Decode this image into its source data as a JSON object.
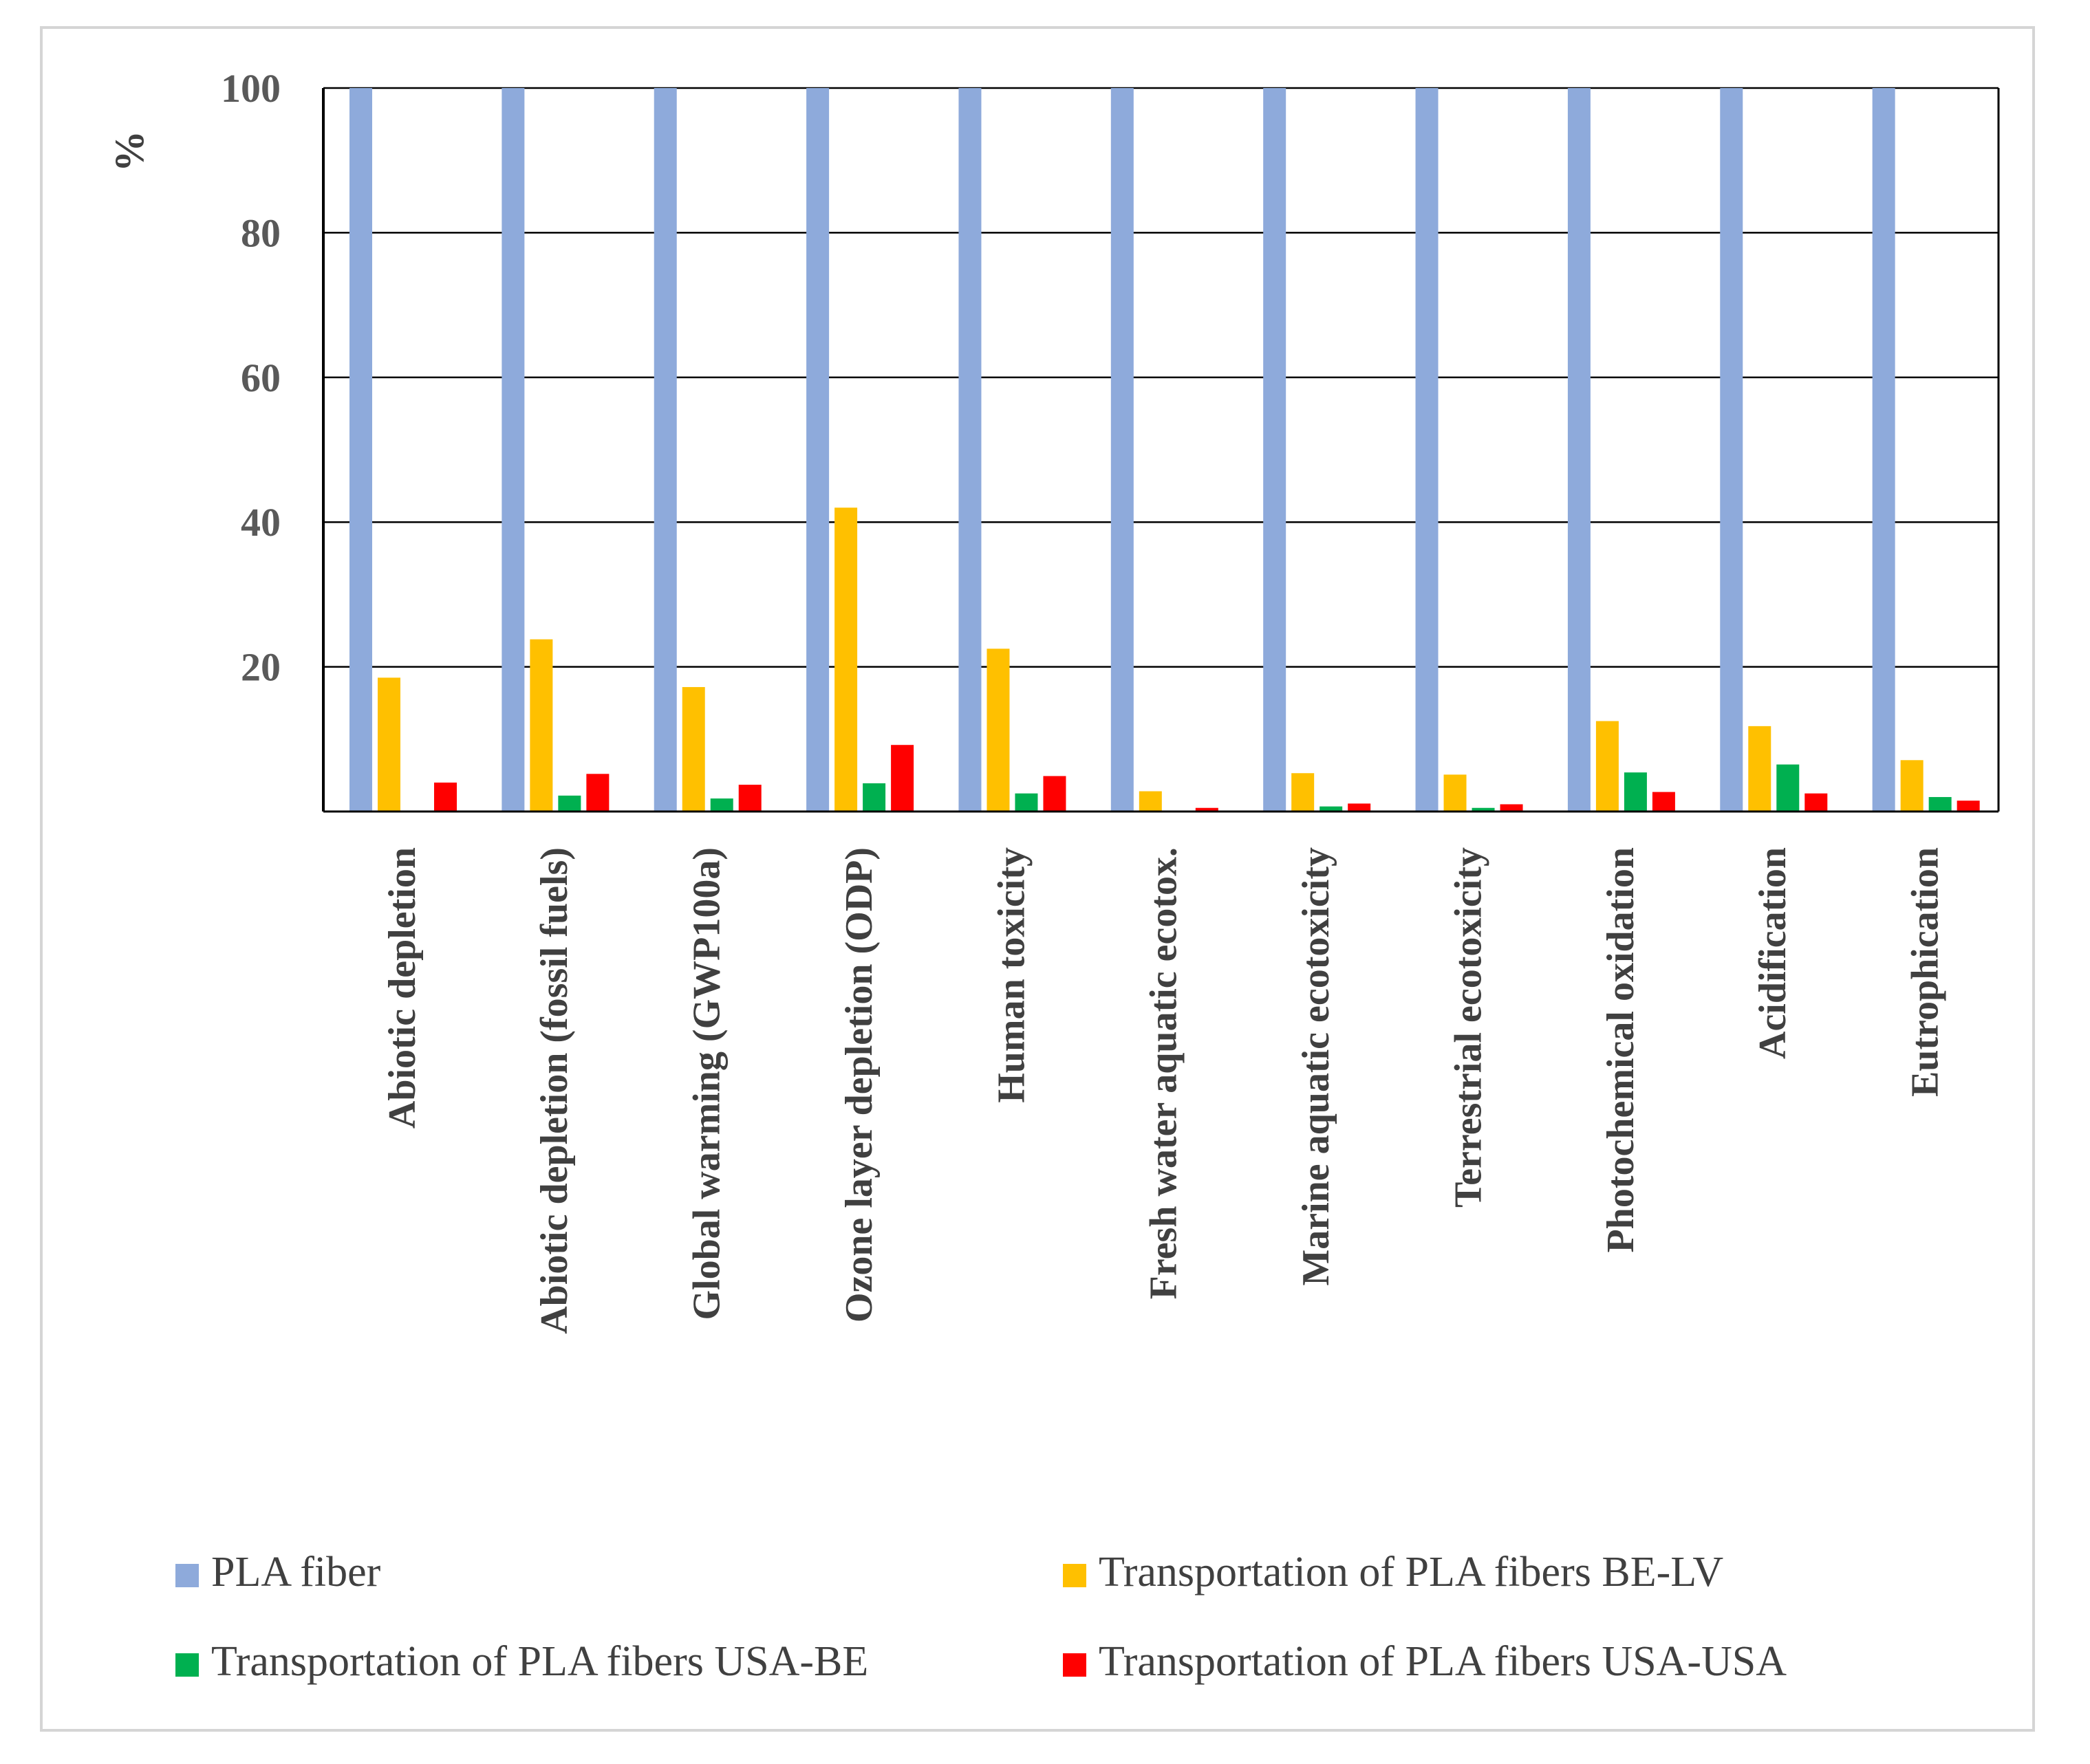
{
  "chart_data": {
    "type": "bar",
    "title": "",
    "xlabel": "",
    "ylabel": "%",
    "ylim": [
      0,
      100
    ],
    "yticks": [
      20,
      40,
      60,
      80,
      100
    ],
    "grid": true,
    "legend_position": "bottom",
    "categories": [
      "Abiotic depletion",
      "Abiotic depletion (fossil fuels)",
      "Global warming (GWP100a)",
      "Ozone layer depletion (ODP)",
      "Human toxicity",
      "Fresh water aquatic ecotox.",
      "Marine aquatic ecotoxicity",
      "Terrestrial ecotoxicity",
      "Photochemical oxidation",
      "Acidification",
      "Eutrophication"
    ],
    "series": [
      {
        "name": "PLA fiber",
        "color": "#8eaadb",
        "values": [
          100,
          100,
          100,
          100,
          100,
          100,
          100,
          100,
          100,
          100,
          100
        ]
      },
      {
        "name": "Transportation of PLA fibers BE-LV",
        "color": "#ffc000",
        "values": [
          18.5,
          23.8,
          17.2,
          42.0,
          22.5,
          2.8,
          5.3,
          5.1,
          12.5,
          11.8,
          7.1
        ]
      },
      {
        "name": "Transportation of PLA fibers USA-BE",
        "color": "#00b050",
        "values": [
          0.0,
          2.2,
          1.8,
          3.9,
          2.5,
          0.0,
          0.7,
          0.5,
          5.4,
          6.5,
          2.0
        ]
      },
      {
        "name": "Transportation of PLA fibers USA-USA",
        "color": "#ff0000",
        "values": [
          4.0,
          5.2,
          3.7,
          9.2,
          4.9,
          0.5,
          1.1,
          1.0,
          2.7,
          2.5,
          1.5
        ]
      }
    ]
  }
}
